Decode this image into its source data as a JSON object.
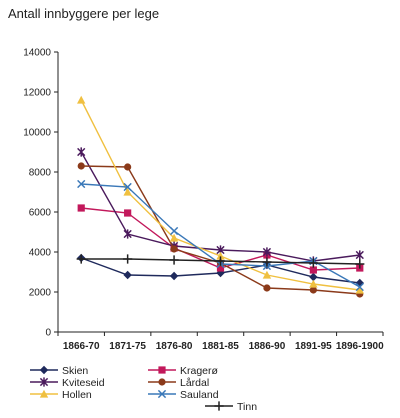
{
  "chart_data": {
    "type": "line",
    "title": "Antall innbyggere per lege",
    "xlabel": "",
    "ylabel": "",
    "categories": [
      "1866-70",
      "1871-75",
      "1876-80",
      "1881-85",
      "1886-90",
      "1891-95",
      "1896-1900"
    ],
    "ylim": [
      0,
      14000
    ],
    "yticks": [
      0,
      2000,
      4000,
      6000,
      8000,
      10000,
      12000,
      14000
    ],
    "ytick_labels": [
      "0",
      "2000",
      "4000",
      "6000",
      "8000",
      "10000",
      "12000",
      "14000"
    ],
    "grid": false,
    "legend_position": "bottom",
    "series": [
      {
        "name": "Skien",
        "color": "#1f2a5c",
        "marker": "diamond",
        "values": [
          3700,
          2850,
          2800,
          2950,
          3350,
          2750,
          2450
        ]
      },
      {
        "name": "Kragerø",
        "color": "#c2185b",
        "marker": "square",
        "values": [
          6200,
          5950,
          4200,
          3200,
          3850,
          3100,
          3200
        ]
      },
      {
        "name": "Kviteseid",
        "color": "#4a1a5c",
        "marker": "star",
        "values": [
          9000,
          4900,
          4300,
          4100,
          4000,
          3550,
          3850
        ]
      },
      {
        "name": "Lårdal",
        "color": "#8b3a1a",
        "marker": "circle",
        "values": [
          8300,
          8250,
          4150,
          3450,
          2200,
          2100,
          1900
        ]
      },
      {
        "name": "Hollen",
        "color": "#f0c040",
        "marker": "triangle",
        "values": [
          11600,
          7000,
          4700,
          3800,
          2850,
          2400,
          2100
        ]
      },
      {
        "name": "Sauland",
        "color": "#3a78b8",
        "marker": "x",
        "values": [
          7400,
          7250,
          5050,
          3400,
          3300,
          3550,
          2250
        ]
      },
      {
        "name": "Tinn",
        "color": "#222222",
        "marker": "plus",
        "values": [
          3650,
          3650,
          3600,
          3550,
          3500,
          3450,
          3400
        ]
      }
    ]
  }
}
